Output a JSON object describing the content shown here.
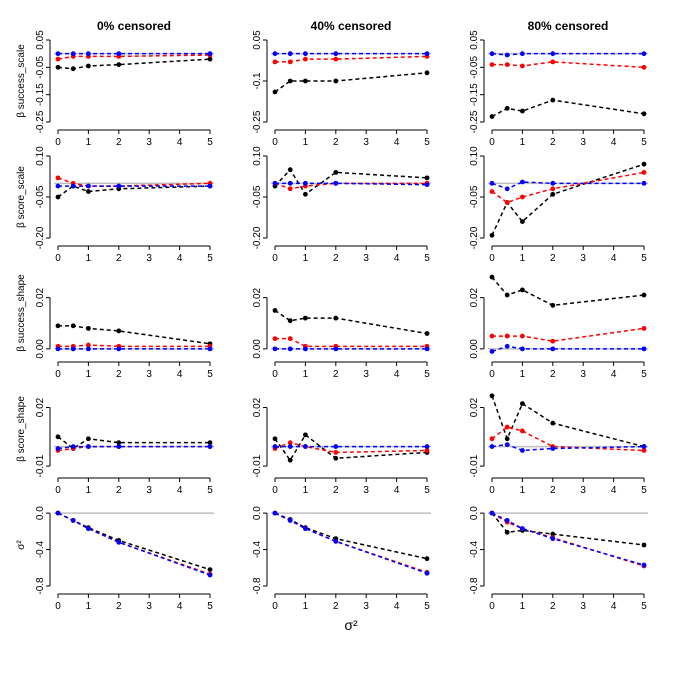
{
  "chart_data": [
    {
      "type": "line",
      "title": "0% censored",
      "ylabel": "β success_scale",
      "x": [
        0,
        0.5,
        1,
        2,
        5
      ],
      "xlim": [
        0,
        5
      ],
      "xticks": [
        0,
        1,
        2,
        3,
        4,
        5
      ],
      "ylim": [
        -0.25,
        0.05
      ],
      "yticks": [
        0.05,
        -0.05,
        -0.15,
        -0.25
      ],
      "reference_line": {
        "value": 0,
        "color": "#bebebe"
      },
      "series": [
        {
          "color": "#000000",
          "values": [
            -0.05,
            -0.055,
            -0.045,
            -0.04,
            -0.02
          ]
        },
        {
          "color": "#ff0000",
          "values": [
            -0.02,
            -0.01,
            -0.01,
            -0.01,
            -0.005
          ]
        },
        {
          "color": "#0000ff",
          "values": [
            0,
            0,
            0,
            0,
            0
          ]
        }
      ]
    },
    {
      "type": "line",
      "title": "40% censored",
      "x": [
        0,
        0.5,
        1,
        2,
        5
      ],
      "xlim": [
        0,
        5
      ],
      "xticks": [
        0,
        1,
        2,
        3,
        4,
        5
      ],
      "ylim": [
        -0.25,
        0.05
      ],
      "yticks": [
        0.05,
        -0.1,
        -0.25
      ],
      "reference_line": {
        "value": 0,
        "color": "#bebebe"
      },
      "series": [
        {
          "color": "#000000",
          "values": [
            -0.14,
            -0.1,
            -0.1,
            -0.1,
            -0.07
          ]
        },
        {
          "color": "#ff0000",
          "values": [
            -0.03,
            -0.03,
            -0.02,
            -0.02,
            -0.01
          ]
        },
        {
          "color": "#0000ff",
          "values": [
            0,
            0,
            0,
            0,
            0
          ]
        }
      ]
    },
    {
      "type": "line",
      "title": "80% censored",
      "x": [
        0,
        0.5,
        1,
        2,
        5
      ],
      "xlim": [
        0,
        5
      ],
      "xticks": [
        0,
        1,
        2,
        3,
        4,
        5
      ],
      "ylim": [
        -0.25,
        0.05
      ],
      "yticks": [
        0.05,
        -0.05,
        -0.15,
        -0.25
      ],
      "reference_line": {
        "value": 0,
        "color": "#bebebe"
      },
      "series": [
        {
          "color": "#000000",
          "values": [
            -0.23,
            -0.2,
            -0.21,
            -0.17,
            -0.22
          ]
        },
        {
          "color": "#ff0000",
          "values": [
            -0.04,
            -0.04,
            -0.045,
            -0.03,
            -0.05
          ]
        },
        {
          "color": "#0000ff",
          "values": [
            0,
            -0.005,
            0,
            0,
            0
          ]
        }
      ]
    },
    {
      "type": "line",
      "ylabel": "β score_scale",
      "x": [
        0,
        0.5,
        1,
        2,
        5
      ],
      "xlim": [
        0,
        5
      ],
      "xticks": [
        0,
        1,
        2,
        3,
        4,
        5
      ],
      "ylim": [
        -0.2,
        0.1
      ],
      "yticks": [
        {
          "value": 0.1,
          "label": "0.10"
        },
        -0.05,
        {
          "value": -0.2,
          "label": "-0.20"
        }
      ],
      "reference_line": {
        "value": 0,
        "color": "#bebebe"
      },
      "series": [
        {
          "color": "#000000",
          "values": [
            -0.05,
            -0.01,
            -0.03,
            -0.02,
            -0.01
          ]
        },
        {
          "color": "#ff0000",
          "values": [
            0.02,
            0,
            -0.01,
            -0.01,
            0
          ]
        },
        {
          "color": "#0000ff",
          "values": [
            -0.01,
            -0.01,
            -0.01,
            -0.01,
            -0.01
          ]
        }
      ]
    },
    {
      "type": "line",
      "x": [
        0,
        0.5,
        1,
        2,
        5
      ],
      "xlim": [
        0,
        5
      ],
      "xticks": [
        0,
        1,
        2,
        3,
        4,
        5
      ],
      "ylim": [
        -0.2,
        0.1
      ],
      "yticks": [
        {
          "value": 0.1,
          "label": "0.10"
        },
        -0.05,
        {
          "value": -0.2,
          "label": "-0.20"
        }
      ],
      "reference_line": {
        "value": 0,
        "color": "#bebebe"
      },
      "series": [
        {
          "color": "#000000",
          "values": [
            -0.01,
            0.05,
            -0.04,
            0.04,
            0.02
          ]
        },
        {
          "color": "#ff0000",
          "values": [
            0,
            -0.02,
            -0.01,
            0,
            0
          ]
        },
        {
          "color": "#0000ff",
          "values": [
            0,
            0,
            0,
            0,
            -0.005
          ]
        }
      ]
    },
    {
      "type": "line",
      "x": [
        0,
        0.5,
        1,
        2,
        5
      ],
      "xlim": [
        0,
        5
      ],
      "xticks": [
        0,
        1,
        2,
        3,
        4,
        5
      ],
      "ylim": [
        -0.2,
        0.1
      ],
      "yticks": [
        {
          "value": 0.1,
          "label": "0.10"
        },
        -0.05,
        {
          "value": -0.2,
          "label": "-0.20"
        }
      ],
      "reference_line": {
        "value": 0,
        "color": "#bebebe"
      },
      "series": [
        {
          "color": "#000000",
          "values": [
            -0.19,
            -0.07,
            -0.14,
            -0.04,
            0.07
          ]
        },
        {
          "color": "#ff0000",
          "values": [
            -0.03,
            -0.07,
            -0.05,
            -0.02,
            0.04
          ]
        },
        {
          "color": "#0000ff",
          "values": [
            0,
            -0.02,
            0.005,
            0,
            0
          ]
        }
      ]
    },
    {
      "type": "line",
      "ylabel": "β success_shape",
      "x": [
        0,
        0.5,
        1,
        2,
        5
      ],
      "xlim": [
        0,
        5
      ],
      "xticks": [
        0,
        1,
        2,
        3,
        4,
        5
      ],
      "ylim": [
        -0.002,
        0.03
      ],
      "yticks": [
        {
          "value": 0,
          "label": "0.00"
        },
        0.02
      ],
      "reference_line": {
        "value": 0,
        "color": "#bebebe"
      },
      "series": [
        {
          "color": "#000000",
          "values": [
            0.009,
            0.009,
            0.008,
            0.007,
            0.002
          ]
        },
        {
          "color": "#ff0000",
          "values": [
            0.001,
            0.001,
            0.0015,
            0.001,
            0.001
          ]
        },
        {
          "color": "#0000ff",
          "values": [
            0,
            0,
            0,
            0,
            0
          ]
        }
      ]
    },
    {
      "type": "line",
      "x": [
        0,
        0.5,
        1,
        2,
        5
      ],
      "xlim": [
        0,
        5
      ],
      "xticks": [
        0,
        1,
        2,
        3,
        4,
        5
      ],
      "ylim": [
        -0.002,
        0.03
      ],
      "yticks": [
        {
          "value": 0,
          "label": "0.00"
        },
        0.02
      ],
      "reference_line": {
        "value": 0,
        "color": "#bebebe"
      },
      "series": [
        {
          "color": "#000000",
          "values": [
            0.015,
            0.011,
            0.012,
            0.012,
            0.006
          ]
        },
        {
          "color": "#ff0000",
          "values": [
            0.004,
            0.004,
            0.001,
            0.001,
            0.001
          ]
        },
        {
          "color": "#0000ff",
          "values": [
            0,
            0,
            0,
            0,
            0
          ]
        }
      ]
    },
    {
      "type": "line",
      "x": [
        0,
        0.5,
        1,
        2,
        5
      ],
      "xlim": [
        0,
        5
      ],
      "xticks": [
        0,
        1,
        2,
        3,
        4,
        5
      ],
      "ylim": [
        -0.002,
        0.03
      ],
      "yticks": [
        {
          "value": 0,
          "label": "0.00"
        },
        0.02
      ],
      "reference_line": {
        "value": 0,
        "color": "#bebebe"
      },
      "series": [
        {
          "color": "#000000",
          "values": [
            0.028,
            0.021,
            0.023,
            0.017,
            0.021
          ]
        },
        {
          "color": "#ff0000",
          "values": [
            0.005,
            0.005,
            0.005,
            0.003,
            0.008
          ]
        },
        {
          "color": "#0000ff",
          "values": [
            -0.001,
            0.001,
            0,
            0,
            0
          ]
        }
      ]
    },
    {
      "type": "line",
      "ylabel": "β score_shape",
      "x": [
        0,
        0.5,
        1,
        2,
        5
      ],
      "xlim": [
        0,
        5
      ],
      "xticks": [
        0,
        1,
        2,
        3,
        4,
        5
      ],
      "ylim": [
        -0.012,
        0.03
      ],
      "yticks": [
        -0.01,
        0.02
      ],
      "reference_line": {
        "value": 0,
        "color": "#bebebe"
      },
      "series": [
        {
          "color": "#000000",
          "values": [
            0.005,
            -0.001,
            0.004,
            0.002,
            0.002
          ]
        },
        {
          "color": "#ff0000",
          "values": [
            -0.002,
            -0.001,
            0,
            0,
            0
          ]
        },
        {
          "color": "#0000ff",
          "values": [
            -0.001,
            0,
            0,
            0,
            0
          ]
        }
      ]
    },
    {
      "type": "line",
      "x": [
        0,
        0.5,
        1,
        2,
        5
      ],
      "xlim": [
        0,
        5
      ],
      "xticks": [
        0,
        1,
        2,
        3,
        4,
        5
      ],
      "ylim": [
        -0.012,
        0.03
      ],
      "yticks": [
        -0.01,
        0.02
      ],
      "reference_line": {
        "value": 0,
        "color": "#bebebe"
      },
      "series": [
        {
          "color": "#000000",
          "values": [
            0.004,
            -0.007,
            0.006,
            -0.006,
            -0.003
          ]
        },
        {
          "color": "#ff0000",
          "values": [
            -0.001,
            0.002,
            0,
            -0.003,
            -0.002
          ]
        },
        {
          "color": "#0000ff",
          "values": [
            0,
            0,
            0,
            0,
            0
          ]
        }
      ]
    },
    {
      "type": "line",
      "x": [
        0,
        0.5,
        1,
        2,
        5
      ],
      "xlim": [
        0,
        5
      ],
      "xticks": [
        0,
        1,
        2,
        3,
        4,
        5
      ],
      "ylim": [
        -0.012,
        0.03
      ],
      "yticks": [
        -0.01,
        0.02
      ],
      "reference_line": {
        "value": 0,
        "color": "#bebebe"
      },
      "series": [
        {
          "color": "#000000",
          "values": [
            0.026,
            0.004,
            0.022,
            0.012,
            0
          ]
        },
        {
          "color": "#ff0000",
          "values": [
            0.004,
            0.01,
            0.008,
            0,
            -0.002
          ]
        },
        {
          "color": "#0000ff",
          "values": [
            0,
            0.001,
            -0.002,
            -0.001,
            0
          ]
        }
      ]
    },
    {
      "type": "line",
      "ylabel": "σ²",
      "x": [
        0,
        0.5,
        1,
        2,
        5
      ],
      "xlim": [
        0,
        5
      ],
      "xticks": [
        0,
        1,
        2,
        3,
        4,
        5
      ],
      "ylim": [
        -0.8,
        0.1
      ],
      "yticks": [
        {
          "value": 0,
          "label": "0.0"
        },
        -0.4,
        -0.8
      ],
      "reference_line": {
        "value": 0,
        "color": "#bebebe"
      },
      "series": [
        {
          "color": "#000000",
          "values": [
            0,
            -0.08,
            -0.16,
            -0.3,
            -0.62
          ]
        },
        {
          "color": "#ff0000",
          "values": [
            0,
            -0.08,
            -0.17,
            -0.32,
            -0.67
          ]
        },
        {
          "color": "#0000ff",
          "values": [
            0,
            -0.08,
            -0.17,
            -0.32,
            -0.68
          ]
        }
      ]
    },
    {
      "type": "line",
      "xlabel": "σ²",
      "x": [
        0,
        0.5,
        1,
        2,
        5
      ],
      "xlim": [
        0,
        5
      ],
      "xticks": [
        0,
        1,
        2,
        3,
        4,
        5
      ],
      "ylim": [
        -0.8,
        0.1
      ],
      "yticks": [
        {
          "value": 0,
          "label": "0.0"
        },
        -0.4,
        -0.8
      ],
      "reference_line": {
        "value": 0,
        "color": "#bebebe"
      },
      "series": [
        {
          "color": "#000000",
          "values": [
            0,
            -0.07,
            -0.16,
            -0.28,
            -0.5
          ]
        },
        {
          "color": "#ff0000",
          "values": [
            0,
            -0.08,
            -0.17,
            -0.31,
            -0.65
          ]
        },
        {
          "color": "#0000ff",
          "values": [
            0,
            -0.08,
            -0.17,
            -0.31,
            -0.66
          ]
        }
      ]
    },
    {
      "type": "line",
      "x": [
        0,
        0.5,
        1,
        2,
        5
      ],
      "xlim": [
        0,
        5
      ],
      "xticks": [
        0,
        1,
        2,
        3,
        4,
        5
      ],
      "ylim": [
        -0.8,
        0.1
      ],
      "yticks": [
        {
          "value": 0,
          "label": "0.0"
        },
        -0.4,
        -0.8
      ],
      "reference_line": {
        "value": 0,
        "color": "#bebebe"
      },
      "series": [
        {
          "color": "#000000",
          "values": [
            0,
            -0.21,
            -0.19,
            -0.23,
            -0.35
          ]
        },
        {
          "color": "#ff0000",
          "values": [
            0,
            -0.1,
            -0.17,
            -0.27,
            -0.58
          ]
        },
        {
          "color": "#0000ff",
          "values": [
            0,
            -0.08,
            -0.17,
            -0.28,
            -0.57
          ]
        }
      ]
    }
  ]
}
